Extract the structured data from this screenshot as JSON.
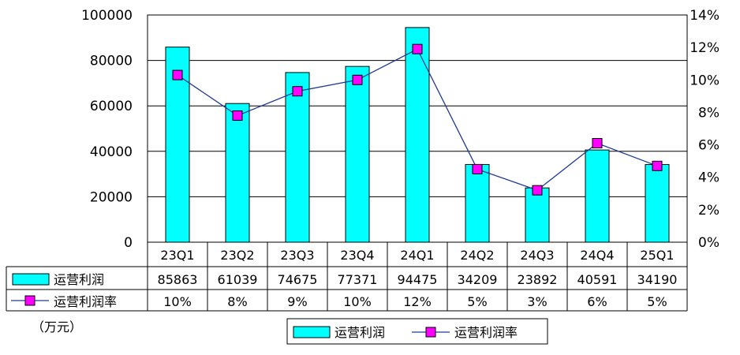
{
  "chart_data": {
    "type": "bar",
    "categories": [
      "23Q1",
      "23Q2",
      "23Q3",
      "23Q4",
      "24Q1",
      "24Q2",
      "24Q3",
      "24Q4",
      "25Q1"
    ],
    "series": [
      {
        "name": "运营利润",
        "type": "bar",
        "axis": "left",
        "values": [
          85863,
          61039,
          74675,
          77371,
          94475,
          34209,
          23892,
          40591,
          34190
        ]
      },
      {
        "name": "运营利润率",
        "type": "line",
        "axis": "right",
        "values": [
          10.3,
          7.8,
          9.3,
          10.0,
          11.9,
          4.5,
          3.2,
          6.1,
          4.7
        ]
      }
    ],
    "table_labels": {
      "profit": [
        "85863",
        "61039",
        "74675",
        "77371",
        "94475",
        "34209",
        "23892",
        "40591",
        "34190"
      ],
      "margin": [
        "10%",
        "8%",
        "9%",
        "10%",
        "12%",
        "5%",
        "3%",
        "6%",
        "5%"
      ]
    },
    "y_left": {
      "ylim": [
        0,
        100000
      ],
      "ticks": [
        "0",
        "20000",
        "40000",
        "60000",
        "80000",
        "100000"
      ]
    },
    "y_right": {
      "ylim": [
        0,
        14
      ],
      "ticks": [
        "0%",
        "2%",
        "4%",
        "6%",
        "8%",
        "10%",
        "12%",
        "14%"
      ]
    },
    "unit_label": "（万元）",
    "grid": true,
    "legend_position": "bottom",
    "colors": {
      "bar": "#00ffff",
      "line": "#1f3a93",
      "marker": "#ff00ff"
    }
  }
}
